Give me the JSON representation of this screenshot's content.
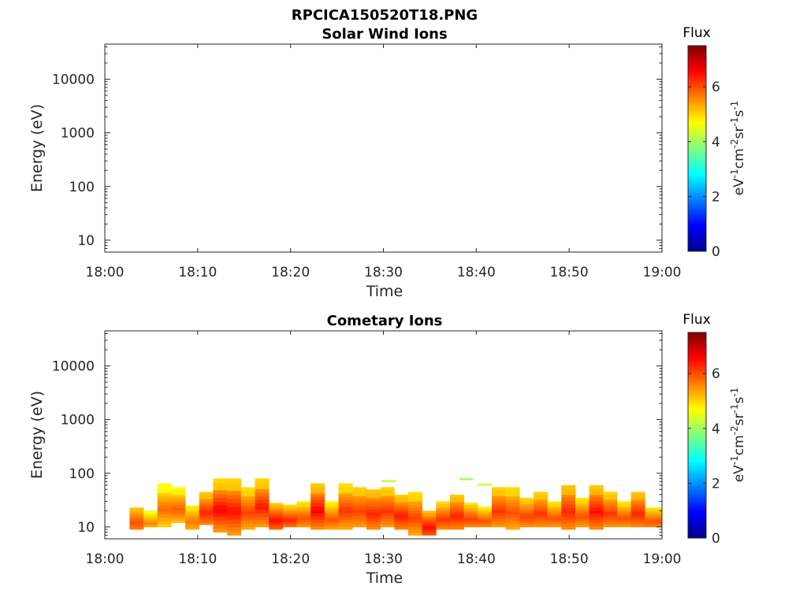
{
  "figure_title": "RPCICA150520T18.PNG",
  "colors": {
    "axis": "#262626",
    "title": "#000000"
  },
  "chart_data": [
    {
      "type": "heatmap",
      "title": "Solar Wind Ions",
      "xlabel": "Time",
      "ylabel": "Energy (eV)",
      "x_ticks": [
        "18:00",
        "18:10",
        "18:20",
        "18:30",
        "18:40",
        "18:50",
        "19:00"
      ],
      "x_range": [
        "18:00",
        "19:00"
      ],
      "y_scale": "log",
      "y_ticks": [
        10,
        100,
        1000,
        10000
      ],
      "y_tick_labels": [
        "10",
        "100",
        "1000",
        "10000"
      ],
      "y_range": [
        6,
        45000
      ],
      "colorbar": {
        "title": "Flux",
        "label": "eV-1cm-2sr-1s-1",
        "range": [
          0,
          7.5
        ],
        "ticks": [
          0,
          2,
          4,
          6
        ],
        "colormap": "jet"
      },
      "cells": []
    },
    {
      "type": "heatmap",
      "title": "Cometary Ions",
      "xlabel": "Time",
      "ylabel": "Energy (eV)",
      "x_ticks": [
        "18:00",
        "18:10",
        "18:20",
        "18:30",
        "18:40",
        "18:50",
        "19:00"
      ],
      "x_range": [
        "18:00",
        "19:00"
      ],
      "y_scale": "log",
      "y_ticks": [
        10,
        100,
        1000,
        10000
      ],
      "y_tick_labels": [
        "10",
        "100",
        "1000",
        "10000"
      ],
      "y_range": [
        6,
        45000
      ],
      "colorbar": {
        "title": "Flux",
        "label": "eV-1cm-2sr-1s-1",
        "range": [
          0,
          7.5
        ],
        "ticks": [
          0,
          2,
          4,
          6
        ],
        "colormap": "jet"
      },
      "columns": [
        {
          "t0": "18:02:40",
          "t1": "18:04:10",
          "top": 23,
          "bottom": 9,
          "peak": 6.0,
          "bg": 5.4
        },
        {
          "t0": "18:04:10",
          "t1": "18:05:40",
          "top": 20,
          "bottom": 10,
          "peak": 5.6,
          "bg": 5.0
        },
        {
          "t0": "18:05:40",
          "t1": "18:07:10",
          "top": 65,
          "bottom": 10,
          "peak": 5.8,
          "bg": 4.9
        },
        {
          "t0": "18:07:10",
          "t1": "18:08:40",
          "top": 55,
          "bottom": 12,
          "peak": 5.9,
          "bg": 5.0
        },
        {
          "t0": "18:08:40",
          "t1": "18:10:10",
          "top": 25,
          "bottom": 9,
          "peak": 5.7,
          "bg": 5.1
        },
        {
          "t0": "18:10:10",
          "t1": "18:11:40",
          "top": 45,
          "bottom": 11,
          "peak": 6.3,
          "bg": 5.4
        },
        {
          "t0": "18:11:40",
          "t1": "18:13:10",
          "top": 80,
          "bottom": 8,
          "peak": 6.6,
          "bg": 5.3
        },
        {
          "t0": "18:13:10",
          "t1": "18:14:40",
          "top": 80,
          "bottom": 7,
          "peak": 6.5,
          "bg": 5.3
        },
        {
          "t0": "18:14:40",
          "t1": "18:16:10",
          "top": 55,
          "bottom": 9,
          "peak": 6.1,
          "bg": 5.2
        },
        {
          "t0": "18:16:10",
          "t1": "18:17:40",
          "top": 80,
          "bottom": 10,
          "peak": 6.4,
          "bg": 5.3
        },
        {
          "t0": "18:17:40",
          "t1": "18:19:10",
          "top": 28,
          "bottom": 9,
          "peak": 6.5,
          "bg": 5.5
        },
        {
          "t0": "18:19:10",
          "t1": "18:20:40",
          "top": 26,
          "bottom": 10,
          "peak": 6.3,
          "bg": 5.4
        },
        {
          "t0": "18:20:40",
          "t1": "18:22:10",
          "top": 30,
          "bottom": 10,
          "peak": 6.0,
          "bg": 5.2
        },
        {
          "t0": "18:22:10",
          "t1": "18:23:40",
          "top": 65,
          "bottom": 9,
          "peak": 6.6,
          "bg": 5.4
        },
        {
          "t0": "18:23:40",
          "t1": "18:25:10",
          "top": 30,
          "bottom": 9,
          "peak": 6.0,
          "bg": 5.1
        },
        {
          "t0": "18:25:10",
          "t1": "18:26:40",
          "top": 65,
          "bottom": 9,
          "peak": 6.2,
          "bg": 5.2
        },
        {
          "t0": "18:26:40",
          "t1": "18:28:10",
          "top": 55,
          "bottom": 10,
          "peak": 6.1,
          "bg": 5.3
        },
        {
          "t0": "18:28:10",
          "t1": "18:29:40",
          "top": 50,
          "bottom": 9,
          "peak": 6.3,
          "bg": 5.4
        },
        {
          "t0": "18:29:40",
          "t1": "18:31:10",
          "top": 55,
          "bottom": 10,
          "peak": 6.2,
          "bg": 5.3
        },
        {
          "t0": "18:31:10",
          "t1": "18:32:40",
          "top": 40,
          "bottom": 9,
          "peak": 6.4,
          "bg": 5.4
        },
        {
          "t0": "18:32:40",
          "t1": "18:34:10",
          "top": 45,
          "bottom": 7,
          "peak": 6.1,
          "bg": 5.2
        },
        {
          "t0": "18:34:10",
          "t1": "18:35:40",
          "top": 20,
          "bottom": 7,
          "peak": 6.5,
          "bg": 5.6
        },
        {
          "t0": "18:35:40",
          "t1": "18:37:10",
          "top": 30,
          "bottom": 9,
          "peak": 6.2,
          "bg": 5.3
        },
        {
          "t0": "18:37:10",
          "t1": "18:38:40",
          "top": 40,
          "bottom": 9,
          "peak": 6.3,
          "bg": 5.4
        },
        {
          "t0": "18:38:40",
          "t1": "18:40:10",
          "top": 28,
          "bottom": 10,
          "peak": 6.1,
          "bg": 5.3
        },
        {
          "t0": "18:40:10",
          "t1": "18:41:40",
          "top": 24,
          "bottom": 10,
          "peak": 6.0,
          "bg": 5.2
        },
        {
          "t0": "18:41:40",
          "t1": "18:43:10",
          "top": 55,
          "bottom": 10,
          "peak": 6.2,
          "bg": 5.3
        },
        {
          "t0": "18:43:10",
          "t1": "18:44:40",
          "top": 55,
          "bottom": 9,
          "peak": 6.0,
          "bg": 5.2
        },
        {
          "t0": "18:44:40",
          "t1": "18:46:10",
          "top": 35,
          "bottom": 10,
          "peak": 6.1,
          "bg": 5.3
        },
        {
          "t0": "18:46:10",
          "t1": "18:47:40",
          "top": 45,
          "bottom": 10,
          "peak": 6.2,
          "bg": 5.3
        },
        {
          "t0": "18:47:40",
          "t1": "18:49:10",
          "top": 30,
          "bottom": 10,
          "peak": 6.0,
          "bg": 5.2
        },
        {
          "t0": "18:49:10",
          "t1": "18:50:40",
          "top": 60,
          "bottom": 9,
          "peak": 6.3,
          "bg": 5.4
        },
        {
          "t0": "18:50:40",
          "t1": "18:52:10",
          "top": 35,
          "bottom": 10,
          "peak": 6.0,
          "bg": 5.2
        },
        {
          "t0": "18:52:10",
          "t1": "18:53:40",
          "top": 60,
          "bottom": 9,
          "peak": 6.5,
          "bg": 5.4
        },
        {
          "t0": "18:53:40",
          "t1": "18:55:10",
          "top": 45,
          "bottom": 10,
          "peak": 6.2,
          "bg": 5.3
        },
        {
          "t0": "18:55:10",
          "t1": "18:56:40",
          "top": 30,
          "bottom": 10,
          "peak": 6.0,
          "bg": 5.2
        },
        {
          "t0": "18:56:40",
          "t1": "18:58:10",
          "top": 45,
          "bottom": 10,
          "peak": 6.3,
          "bg": 5.4
        },
        {
          "t0": "18:58:10",
          "t1": "19:00:00",
          "top": 23,
          "bottom": 10,
          "peak": 6.0,
          "bg": 5.3
        }
      ],
      "sparse_marks": [
        {
          "t0": "18:29:50",
          "t1": "18:31:20",
          "energy": 72,
          "flux": 4.2
        },
        {
          "t0": "18:38:10",
          "t1": "18:39:40",
          "energy": 78,
          "flux": 4.0
        },
        {
          "t0": "18:40:10",
          "t1": "18:41:40",
          "energy": 62,
          "flux": 4.3
        }
      ]
    }
  ]
}
